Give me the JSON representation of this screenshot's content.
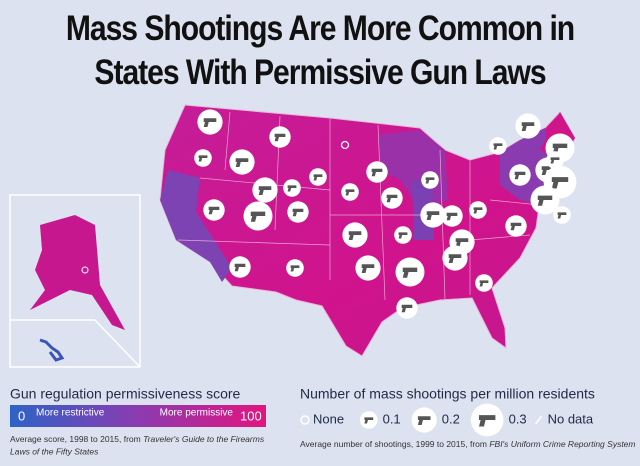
{
  "title": [
    "Mass Shootings Are More Common in",
    "States With Permissive Gun Laws"
  ],
  "color_legend": {
    "title": "Gun regulation permissiveness score",
    "min": 0,
    "max": 100,
    "left_label": "More restrictive",
    "right_label": "More permissive",
    "source": "Average score, 1998 to 2015, from ",
    "source_title": [
      "Traveler's Guide to the Firearms",
      "Laws of the Fifty States"
    ]
  },
  "size_legend": {
    "title": "Number of mass shootings per million residents",
    "none_label": "None",
    "sizes": [
      0.1,
      0.2,
      0.3
    ],
    "no_data_label": "No data",
    "source": "Average number of shootings, 1999 to 2015, from ",
    "source_title": "FBI's Uniform Crime Reporting System"
  },
  "markers": [
    0.2,
    0.1,
    0.15,
    0.2,
    0,
    0.1,
    0.15,
    0.1,
    0.2,
    0.15,
    0.1,
    0.25,
    0.15,
    0.1,
    0.15,
    0.2,
    0.1,
    0.2,
    0.15,
    0.1,
    0.2,
    0.15,
    0.1,
    0.2,
    0.15,
    0.2,
    0.25,
    0.3,
    0.25,
    0.1,
    0.1,
    0.15,
    0.1,
    0.2,
    0.25,
    0.15,
    0.2,
    0.1
  ]
}
